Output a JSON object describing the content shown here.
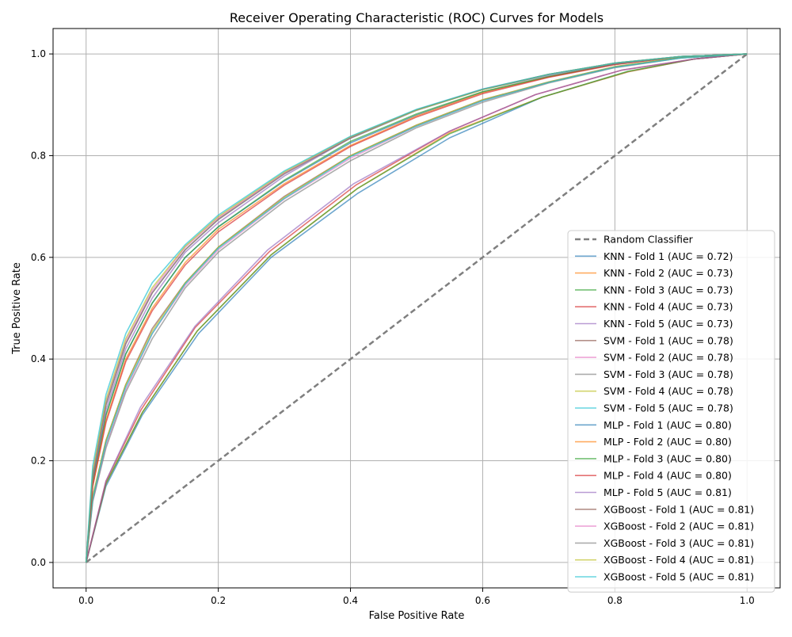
{
  "chart_data": {
    "type": "line",
    "title": "Receiver Operating Characteristic (ROC) Curves for Models",
    "xlabel": "False Positive Rate",
    "ylabel": "True Positive Rate",
    "xlim": [
      -0.05,
      1.05
    ],
    "ylim": [
      -0.05,
      1.05
    ],
    "xticks": [
      "0.0",
      "0.2",
      "0.4",
      "0.6",
      "0.8",
      "1.0"
    ],
    "yticks": [
      "0.0",
      "0.2",
      "0.4",
      "0.6",
      "0.8",
      "1.0"
    ],
    "grid": true,
    "legend_position": "lower-right",
    "series": [
      {
        "name": "Random Classifier",
        "color": "#7f7f7f",
        "style": "dashed",
        "x": [
          0,
          1
        ],
        "y": [
          0,
          1
        ]
      },
      {
        "name": "KNN - Fold 1 (AUC = 0.72)",
        "color": "#1f77b4",
        "x": [
          0,
          0.03,
          0.085,
          0.17,
          0.28,
          0.41,
          0.55,
          0.69,
          0.82,
          0.92,
          1.0
        ],
        "y": [
          0,
          0.15,
          0.29,
          0.45,
          0.6,
          0.725,
          0.835,
          0.915,
          0.965,
          0.99,
          1.0
        ]
      },
      {
        "name": "KNN - Fold 2 (AUC = 0.73)",
        "color": "#ff7f0e",
        "x": [
          0,
          0.03,
          0.085,
          0.168,
          0.28,
          0.41,
          0.55,
          0.69,
          0.82,
          0.92,
          1.0
        ],
        "y": [
          0,
          0.155,
          0.295,
          0.455,
          0.605,
          0.735,
          0.845,
          0.915,
          0.965,
          0.99,
          1.0
        ]
      },
      {
        "name": "KNN - Fold 3 (AUC = 0.73)",
        "color": "#2ca02c",
        "x": [
          0,
          0.03,
          0.085,
          0.168,
          0.28,
          0.41,
          0.55,
          0.69,
          0.82,
          0.92,
          1.0
        ],
        "y": [
          0,
          0.155,
          0.295,
          0.455,
          0.605,
          0.735,
          0.843,
          0.915,
          0.966,
          0.99,
          1.0
        ]
      },
      {
        "name": "KNN - Fold 4 (AUC = 0.73)",
        "color": "#d62728",
        "x": [
          0,
          0.03,
          0.083,
          0.165,
          0.278,
          0.408,
          0.55,
          0.68,
          0.81,
          0.92,
          1.0
        ],
        "y": [
          0,
          0.16,
          0.3,
          0.462,
          0.612,
          0.742,
          0.848,
          0.92,
          0.968,
          0.99,
          1.0
        ]
      },
      {
        "name": "KNN - Fold 5 (AUC = 0.73)",
        "color": "#9467bd",
        "x": [
          0,
          0.03,
          0.082,
          0.165,
          0.275,
          0.405,
          0.55,
          0.68,
          0.81,
          0.92,
          1.0
        ],
        "y": [
          0,
          0.16,
          0.305,
          0.465,
          0.615,
          0.745,
          0.848,
          0.92,
          0.968,
          0.99,
          1.0
        ]
      },
      {
        "name": "SVM - Fold 1 (AUC = 0.78)",
        "color": "#8c564b",
        "x": [
          0,
          0.01,
          0.03,
          0.06,
          0.1,
          0.15,
          0.2,
          0.3,
          0.4,
          0.5,
          0.6,
          0.7,
          0.8,
          0.9,
          1.0
        ],
        "y": [
          0,
          0.13,
          0.24,
          0.35,
          0.46,
          0.55,
          0.62,
          0.72,
          0.8,
          0.86,
          0.91,
          0.945,
          0.975,
          0.993,
          1.0
        ]
      },
      {
        "name": "SVM - Fold 2 (AUC = 0.78)",
        "color": "#e377c2",
        "x": [
          0,
          0.01,
          0.03,
          0.06,
          0.1,
          0.15,
          0.2,
          0.3,
          0.4,
          0.5,
          0.6,
          0.7,
          0.8,
          0.9,
          1.0
        ],
        "y": [
          0,
          0.12,
          0.23,
          0.34,
          0.45,
          0.545,
          0.615,
          0.715,
          0.795,
          0.858,
          0.908,
          0.944,
          0.974,
          0.992,
          1.0
        ]
      },
      {
        "name": "SVM - Fold 3 (AUC = 0.78)",
        "color": "#7f7f7f",
        "x": [
          0,
          0.01,
          0.03,
          0.06,
          0.1,
          0.15,
          0.2,
          0.3,
          0.4,
          0.5,
          0.6,
          0.7,
          0.8,
          0.9,
          1.0
        ],
        "y": [
          0,
          0.12,
          0.225,
          0.335,
          0.44,
          0.54,
          0.61,
          0.71,
          0.79,
          0.855,
          0.905,
          0.943,
          0.973,
          0.992,
          1.0
        ]
      },
      {
        "name": "SVM - Fold 4 (AUC = 0.78)",
        "color": "#bcbd22",
        "x": [
          0,
          0.01,
          0.03,
          0.06,
          0.1,
          0.15,
          0.2,
          0.3,
          0.4,
          0.5,
          0.6,
          0.7,
          0.8,
          0.9,
          1.0
        ],
        "y": [
          0,
          0.13,
          0.24,
          0.35,
          0.455,
          0.55,
          0.62,
          0.718,
          0.8,
          0.86,
          0.91,
          0.945,
          0.975,
          0.993,
          1.0
        ]
      },
      {
        "name": "SVM - Fold 5 (AUC = 0.78)",
        "color": "#17becf",
        "x": [
          0,
          0.01,
          0.03,
          0.06,
          0.1,
          0.15,
          0.2,
          0.3,
          0.4,
          0.5,
          0.6,
          0.7,
          0.8,
          0.9,
          1.0
        ],
        "y": [
          0,
          0.125,
          0.235,
          0.345,
          0.45,
          0.548,
          0.618,
          0.716,
          0.798,
          0.858,
          0.908,
          0.944,
          0.974,
          0.992,
          1.0
        ]
      },
      {
        "name": "MLP - Fold 1 (AUC = 0.80)",
        "color": "#1f77b4",
        "x": [
          0,
          0.01,
          0.03,
          0.06,
          0.1,
          0.15,
          0.2,
          0.3,
          0.4,
          0.5,
          0.6,
          0.7,
          0.8,
          0.9,
          1.0
        ],
        "y": [
          0,
          0.16,
          0.29,
          0.41,
          0.51,
          0.6,
          0.66,
          0.75,
          0.825,
          0.88,
          0.925,
          0.955,
          0.98,
          0.995,
          1.0
        ]
      },
      {
        "name": "MLP - Fold 2 (AUC = 0.80)",
        "color": "#ff7f0e",
        "x": [
          0,
          0.01,
          0.03,
          0.06,
          0.1,
          0.15,
          0.2,
          0.3,
          0.4,
          0.5,
          0.6,
          0.7,
          0.8,
          0.9,
          1.0
        ],
        "y": [
          0,
          0.15,
          0.28,
          0.4,
          0.5,
          0.59,
          0.655,
          0.745,
          0.82,
          0.878,
          0.924,
          0.955,
          0.98,
          0.995,
          1.0
        ]
      },
      {
        "name": "MLP - Fold 3 (AUC = 0.80)",
        "color": "#2ca02c",
        "x": [
          0,
          0.01,
          0.03,
          0.06,
          0.1,
          0.15,
          0.2,
          0.3,
          0.4,
          0.5,
          0.6,
          0.7,
          0.8,
          0.9,
          1.0
        ],
        "y": [
          0,
          0.16,
          0.29,
          0.41,
          0.51,
          0.6,
          0.66,
          0.752,
          0.828,
          0.882,
          0.926,
          0.956,
          0.98,
          0.995,
          1.0
        ]
      },
      {
        "name": "MLP - Fold 4 (AUC = 0.80)",
        "color": "#d62728",
        "x": [
          0,
          0.01,
          0.03,
          0.06,
          0.1,
          0.15,
          0.2,
          0.3,
          0.4,
          0.5,
          0.6,
          0.7,
          0.8,
          0.9,
          1.0
        ],
        "y": [
          0,
          0.15,
          0.275,
          0.395,
          0.495,
          0.585,
          0.65,
          0.742,
          0.818,
          0.876,
          0.922,
          0.954,
          0.979,
          0.995,
          1.0
        ]
      },
      {
        "name": "MLP - Fold 5 (AUC = 0.81)",
        "color": "#9467bd",
        "x": [
          0,
          0.01,
          0.03,
          0.06,
          0.1,
          0.15,
          0.2,
          0.3,
          0.4,
          0.5,
          0.6,
          0.7,
          0.8,
          0.9,
          1.0
        ],
        "y": [
          0,
          0.165,
          0.3,
          0.42,
          0.52,
          0.61,
          0.668,
          0.76,
          0.835,
          0.89,
          0.93,
          0.958,
          0.981,
          0.995,
          1.0
        ]
      },
      {
        "name": "XGBoost - Fold 1 (AUC = 0.81)",
        "color": "#8c564b",
        "x": [
          0,
          0.01,
          0.03,
          0.06,
          0.1,
          0.15,
          0.2,
          0.3,
          0.4,
          0.5,
          0.6,
          0.7,
          0.8,
          0.9,
          1.0
        ],
        "y": [
          0,
          0.17,
          0.31,
          0.43,
          0.53,
          0.615,
          0.675,
          0.765,
          0.835,
          0.89,
          0.93,
          0.96,
          0.982,
          0.995,
          1.0
        ]
      },
      {
        "name": "XGBoost - Fold 2 (AUC = 0.81)",
        "color": "#e377c2",
        "x": [
          0,
          0.01,
          0.03,
          0.06,
          0.1,
          0.15,
          0.2,
          0.3,
          0.4,
          0.5,
          0.6,
          0.7,
          0.8,
          0.9,
          1.0
        ],
        "y": [
          0,
          0.175,
          0.315,
          0.435,
          0.535,
          0.62,
          0.678,
          0.766,
          0.836,
          0.89,
          0.931,
          0.96,
          0.982,
          0.995,
          1.0
        ]
      },
      {
        "name": "XGBoost - Fold 3 (AUC = 0.81)",
        "color": "#7f7f7f",
        "x": [
          0,
          0.01,
          0.03,
          0.06,
          0.1,
          0.15,
          0.2,
          0.3,
          0.4,
          0.5,
          0.6,
          0.7,
          0.8,
          0.9,
          1.0
        ],
        "y": [
          0,
          0.17,
          0.31,
          0.43,
          0.53,
          0.615,
          0.674,
          0.764,
          0.834,
          0.889,
          0.93,
          0.96,
          0.982,
          0.995,
          1.0
        ]
      },
      {
        "name": "XGBoost - Fold 4 (AUC = 0.81)",
        "color": "#bcbd22",
        "x": [
          0,
          0.01,
          0.03,
          0.06,
          0.1,
          0.15,
          0.2,
          0.3,
          0.4,
          0.5,
          0.6,
          0.7,
          0.8,
          0.9,
          1.0
        ],
        "y": [
          0,
          0.18,
          0.32,
          0.44,
          0.54,
          0.622,
          0.68,
          0.768,
          0.837,
          0.89,
          0.93,
          0.96,
          0.982,
          0.995,
          1.0
        ]
      },
      {
        "name": "XGBoost - Fold 5 (AUC = 0.81)",
        "color": "#17becf",
        "x": [
          0,
          0.01,
          0.03,
          0.06,
          0.1,
          0.15,
          0.2,
          0.3,
          0.4,
          0.5,
          0.6,
          0.7,
          0.8,
          0.9,
          1.0
        ],
        "y": [
          0,
          0.19,
          0.33,
          0.45,
          0.55,
          0.625,
          0.683,
          0.77,
          0.838,
          0.891,
          0.931,
          0.96,
          0.982,
          0.995,
          1.0
        ]
      }
    ]
  }
}
